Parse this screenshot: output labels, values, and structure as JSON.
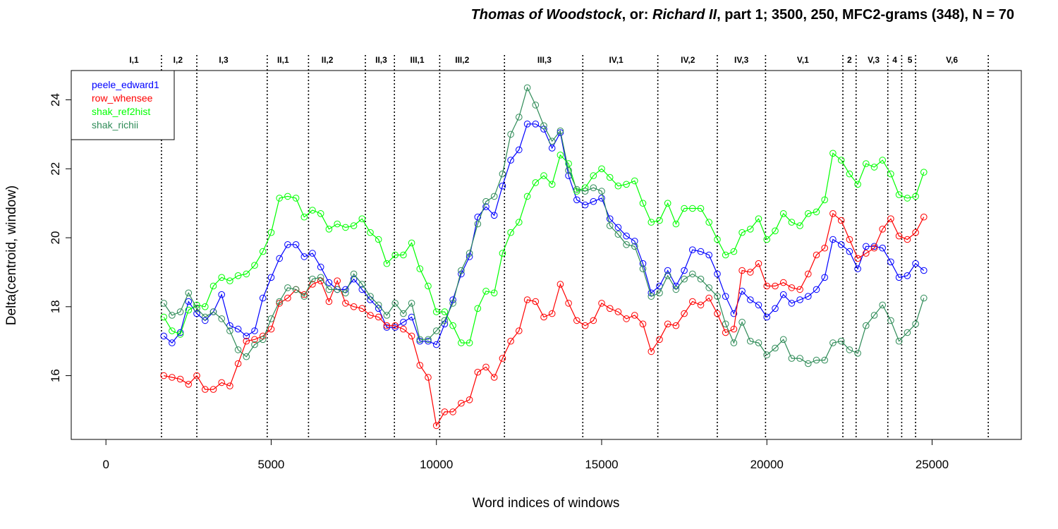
{
  "chart_data": {
    "type": "line",
    "title_segments": [
      {
        "text": "Thomas of Woodstock",
        "italic": true
      },
      {
        "text": ", or: ",
        "italic": false
      },
      {
        "text": "Richard II",
        "italic": true
      },
      {
        "text": ", part 1; 3500, 250, MFC2-grams (348), N = 70",
        "italic": false
      }
    ],
    "xlabel": "Word indices of windows",
    "ylabel": "Delta(centroid, window)",
    "xlim": [
      -1050,
      27700
    ],
    "ylim": [
      14.15,
      24.85
    ],
    "xticks": [
      0,
      5000,
      10000,
      15000,
      20000,
      25000
    ],
    "xtick_labels": [
      "0",
      "5000",
      "10000",
      "15000",
      "20000",
      "25000"
    ],
    "yticks": [
      16,
      18,
      20,
      22,
      24
    ],
    "ytick_labels": [
      "16",
      "18",
      "20",
      "22",
      "24"
    ],
    "grid": false,
    "legend_position": "top-left",
    "scene_boundaries": [
      1680,
      2750,
      4880,
      6130,
      7850,
      8730,
      10100,
      12060,
      14430,
      16700,
      18500,
      19960,
      22300,
      22700,
      23660,
      24080,
      24500,
      26700
    ],
    "scenes": [
      {
        "label": "I,1",
        "x": 850
      },
      {
        "label": "I,2",
        "x": 2180
      },
      {
        "label": "I,3",
        "x": 3560
      },
      {
        "label": "II,1",
        "x": 5360
      },
      {
        "label": "II,2",
        "x": 6700
      },
      {
        "label": "II,3",
        "x": 8330
      },
      {
        "label": "III,1",
        "x": 9420
      },
      {
        "label": "III,2",
        "x": 10780
      },
      {
        "label": "III,3",
        "x": 13270
      },
      {
        "label": "IV,1",
        "x": 15440
      },
      {
        "label": "IV,2",
        "x": 17610
      },
      {
        "label": "IV,3",
        "x": 19230
      },
      {
        "label": "V,1",
        "x": 21090
      },
      {
        "label": "2",
        "x": 22500
      },
      {
        "label": "V,3",
        "x": 23230
      },
      {
        "label": "4",
        "x": 23870
      },
      {
        "label": "5",
        "x": 24330
      },
      {
        "label": "V,6",
        "x": 25600
      }
    ],
    "x": [
      1750,
      2000,
      2250,
      2500,
      2750,
      3000,
      3250,
      3500,
      3750,
      4000,
      4250,
      4500,
      4750,
      5000,
      5250,
      5500,
      5750,
      6000,
      6250,
      6500,
      6750,
      7000,
      7250,
      7500,
      7750,
      8000,
      8250,
      8500,
      8750,
      9000,
      9250,
      9500,
      9750,
      10000,
      10250,
      10500,
      10750,
      11000,
      11250,
      11500,
      11750,
      12000,
      12250,
      12500,
      12750,
      13000,
      13250,
      13500,
      13750,
      14000,
      14250,
      14500,
      14750,
      15000,
      15250,
      15500,
      15750,
      16000,
      16250,
      16500,
      16750,
      17000,
      17250,
      17500,
      17750,
      18000,
      18250,
      18500,
      18750,
      19000,
      19250,
      19500,
      19750,
      20000,
      20250,
      20500,
      20750,
      21000,
      21250,
      21500,
      21750,
      22000,
      22250,
      22500,
      22750,
      23000,
      23250,
      23500,
      23750,
      24000,
      24250,
      24500,
      24750
    ],
    "series": [
      {
        "name": "peele_edward1",
        "color": "#0000ff",
        "values": [
          17.15,
          16.95,
          17.25,
          18.15,
          17.8,
          17.6,
          17.85,
          18.35,
          17.45,
          17.35,
          17.15,
          17.3,
          18.25,
          18.85,
          19.4,
          19.8,
          19.8,
          19.45,
          19.55,
          19.15,
          18.7,
          18.5,
          18.5,
          18.8,
          18.5,
          18.2,
          17.95,
          17.4,
          17.4,
          17.55,
          17.7,
          17.0,
          17.0,
          16.9,
          17.5,
          18.2,
          18.95,
          19.45,
          20.6,
          20.9,
          20.65,
          21.5,
          22.25,
          22.55,
          23.3,
          23.3,
          23.15,
          22.6,
          23.05,
          21.8,
          21.1,
          20.95,
          21.05,
          21.15,
          20.55,
          20.3,
          20.05,
          19.9,
          19.25,
          18.4,
          18.6,
          19.05,
          18.6,
          19.05,
          19.65,
          19.6,
          19.5,
          18.95,
          18.3,
          17.8,
          18.45,
          18.2,
          18.05,
          17.7,
          17.95,
          18.35,
          18.1,
          18.2,
          18.3,
          18.5,
          18.85,
          19.95,
          19.8,
          19.6,
          19.1,
          19.75,
          19.75,
          19.7,
          19.3,
          18.85,
          18.9,
          19.25,
          19.05
        ]
      },
      {
        "name": "row_whensee",
        "color": "#ff0000",
        "values": [
          16.0,
          15.95,
          15.9,
          15.75,
          16.0,
          15.6,
          15.6,
          15.8,
          15.7,
          16.35,
          17.0,
          17.05,
          17.15,
          17.35,
          18.1,
          18.25,
          18.5,
          18.35,
          18.65,
          18.75,
          18.15,
          18.75,
          18.1,
          18.0,
          17.95,
          17.75,
          17.7,
          17.45,
          17.45,
          17.35,
          17.15,
          16.3,
          15.95,
          14.55,
          14.95,
          14.95,
          15.2,
          15.3,
          16.1,
          16.25,
          15.95,
          16.5,
          17.0,
          17.3,
          18.2,
          18.15,
          17.7,
          17.8,
          18.65,
          18.1,
          17.6,
          17.45,
          17.6,
          18.1,
          17.95,
          17.85,
          17.65,
          17.75,
          17.5,
          16.7,
          17.05,
          17.5,
          17.45,
          17.8,
          18.15,
          18.05,
          18.25,
          17.8,
          17.25,
          17.35,
          19.05,
          19.0,
          19.25,
          18.6,
          18.6,
          18.7,
          18.55,
          18.5,
          18.95,
          19.5,
          19.7,
          20.7,
          20.5,
          19.95,
          19.4,
          19.55,
          19.7,
          20.25,
          20.55,
          20.05,
          19.95,
          20.15,
          20.6
        ]
      },
      {
        "name": "shak_ref2hist",
        "color": "#00ff00",
        "values": [
          17.7,
          17.3,
          17.2,
          17.9,
          18.05,
          18.0,
          18.6,
          18.85,
          18.75,
          18.9,
          18.95,
          19.2,
          19.6,
          20.15,
          21.15,
          21.2,
          21.15,
          20.6,
          20.8,
          20.7,
          20.25,
          20.4,
          20.3,
          20.35,
          20.55,
          20.15,
          19.95,
          19.25,
          19.5,
          19.5,
          19.85,
          19.1,
          18.6,
          17.85,
          17.85,
          17.45,
          16.95,
          16.95,
          17.95,
          18.45,
          18.4,
          19.55,
          20.15,
          20.45,
          21.2,
          21.6,
          21.8,
          21.55,
          22.4,
          22.15,
          21.35,
          21.45,
          21.8,
          22.0,
          21.75,
          21.5,
          21.55,
          21.65,
          21.0,
          20.45,
          20.5,
          21.0,
          20.4,
          20.85,
          20.85,
          20.85,
          20.45,
          19.95,
          19.5,
          19.6,
          20.15,
          20.25,
          20.55,
          19.95,
          20.2,
          20.7,
          20.45,
          20.35,
          20.7,
          20.75,
          21.1,
          22.45,
          22.25,
          21.85,
          21.55,
          22.15,
          22.05,
          22.25,
          21.85,
          21.25,
          21.15,
          21.2,
          21.9
        ]
      },
      {
        "name": "shak_richii",
        "color": "#2e8b57",
        "values": [
          18.1,
          17.75,
          17.85,
          18.4,
          17.95,
          17.7,
          17.85,
          17.65,
          17.3,
          16.75,
          16.55,
          16.9,
          17.05,
          17.65,
          18.15,
          18.55,
          18.5,
          18.3,
          18.8,
          18.85,
          18.5,
          18.5,
          18.4,
          18.95,
          18.65,
          18.3,
          18.05,
          17.75,
          18.1,
          17.8,
          18.1,
          17.05,
          17.05,
          17.3,
          17.6,
          18.1,
          19.05,
          19.55,
          20.4,
          21.05,
          21.2,
          21.85,
          23.0,
          23.5,
          24.35,
          23.85,
          23.25,
          22.8,
          23.1,
          21.95,
          21.4,
          21.35,
          21.45,
          21.35,
          20.35,
          20.1,
          19.8,
          19.75,
          19.1,
          18.3,
          18.4,
          18.9,
          18.5,
          18.8,
          18.95,
          18.8,
          18.55,
          18.3,
          17.5,
          16.95,
          17.55,
          17.0,
          16.95,
          16.6,
          16.8,
          17.05,
          16.5,
          16.5,
          16.35,
          16.45,
          16.45,
          16.95,
          17.0,
          16.75,
          16.65,
          17.45,
          17.75,
          18.05,
          17.6,
          17.0,
          17.25,
          17.5,
          18.25
        ]
      }
    ]
  }
}
